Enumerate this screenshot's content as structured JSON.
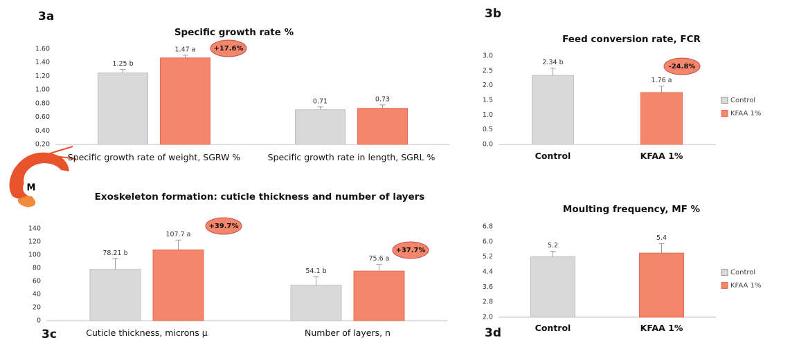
{
  "logo_text": "M",
  "chart_data": [
    {
      "type": "bar",
      "panel": "3a",
      "title": "Specific growth rate %",
      "categories": [
        "Specific growth rate of weight, SGRW %",
        "Specific growth rate in length, SGRL %"
      ],
      "series": [
        {
          "color": "#d9d9d9",
          "values": [
            1.25,
            0.71
          ],
          "value_labels": [
            "1.25 b",
            "0.71"
          ],
          "errors": [
            0.05,
            0.04
          ]
        },
        {
          "color": "#f4876b",
          "values": [
            1.47,
            0.73
          ],
          "value_labels": [
            "1.47 a",
            "0.73"
          ],
          "errors": [
            0.04,
            0.05
          ]
        }
      ],
      "ylim": [
        0.2,
        1.6
      ],
      "yticks": [
        {
          "value": 0.2,
          "label": "0.20"
        },
        {
          "value": 0.4,
          "label": "0.40"
        },
        {
          "value": 0.6,
          "label": "0.60"
        },
        {
          "value": 0.8,
          "label": "0.80"
        },
        {
          "value": 1.0,
          "label": "1.00"
        },
        {
          "value": 1.2,
          "label": "1.20"
        },
        {
          "value": 1.4,
          "label": "1.40"
        },
        {
          "value": 1.6,
          "label": "1.60"
        }
      ],
      "annotations": [
        "+17.6%"
      ]
    },
    {
      "type": "bar",
      "panel": "3b",
      "title": "Feed conversion rate, FCR",
      "categories": [
        "Control",
        "KFAA 1%"
      ],
      "values": [
        2.34,
        1.76
      ],
      "value_labels": [
        "2.34 b",
        "1.76 a"
      ],
      "errors": [
        0.25,
        0.22
      ],
      "colors": [
        "#d9d9d9",
        "#f4876b"
      ],
      "ylim": [
        0,
        3
      ],
      "yticks": [
        {
          "value": 0,
          "label": "0.0"
        },
        0.5,
        {
          "value": 1,
          "label": "1.0"
        },
        1.5,
        {
          "value": 2,
          "label": "2.0"
        },
        2.5,
        {
          "value": 3,
          "label": "3.0"
        }
      ],
      "annotations": [
        "-24.8%"
      ],
      "legend": "right"
    },
    {
      "type": "bar",
      "panel": "3c",
      "title": "Exoskeleton formation: cuticle thickness and number of layers",
      "categories": [
        "Cuticle thickness, microns µ",
        "Number of layers, n"
      ],
      "series": [
        {
          "color": "#d9d9d9",
          "values": [
            78.21,
            54.1
          ],
          "value_labels": [
            "78.21 b",
            "54.1 b"
          ],
          "errors": [
            16,
            13
          ]
        },
        {
          "color": "#f4876b",
          "values": [
            107.7,
            75.6
          ],
          "value_labels": [
            "107.7 a",
            "75.6 a"
          ],
          "errors": [
            15,
            10
          ]
        }
      ],
      "ylim": [
        0,
        140
      ],
      "yticks": [
        0,
        20,
        40,
        60,
        80,
        100,
        120,
        140
      ],
      "annotations": [
        "+39.7%",
        "+37.7%"
      ]
    },
    {
      "type": "bar",
      "panel": "3d",
      "title": "Moulting frequency, MF %",
      "categories": [
        "Control",
        "KFAA 1%"
      ],
      "values": [
        5.2,
        5.4
      ],
      "errors": [
        0.3,
        0.5
      ],
      "colors": [
        "#d9d9d9",
        "#f4876b"
      ],
      "ylim": [
        2.0,
        6.8
      ],
      "yticks": [
        {
          "value": 2.0,
          "label": "2.0"
        },
        2.8,
        3.6,
        4.4,
        5.2,
        {
          "value": 6.0,
          "label": "6.0"
        },
        6.8
      ],
      "annotations": [],
      "legend": "right"
    }
  ]
}
